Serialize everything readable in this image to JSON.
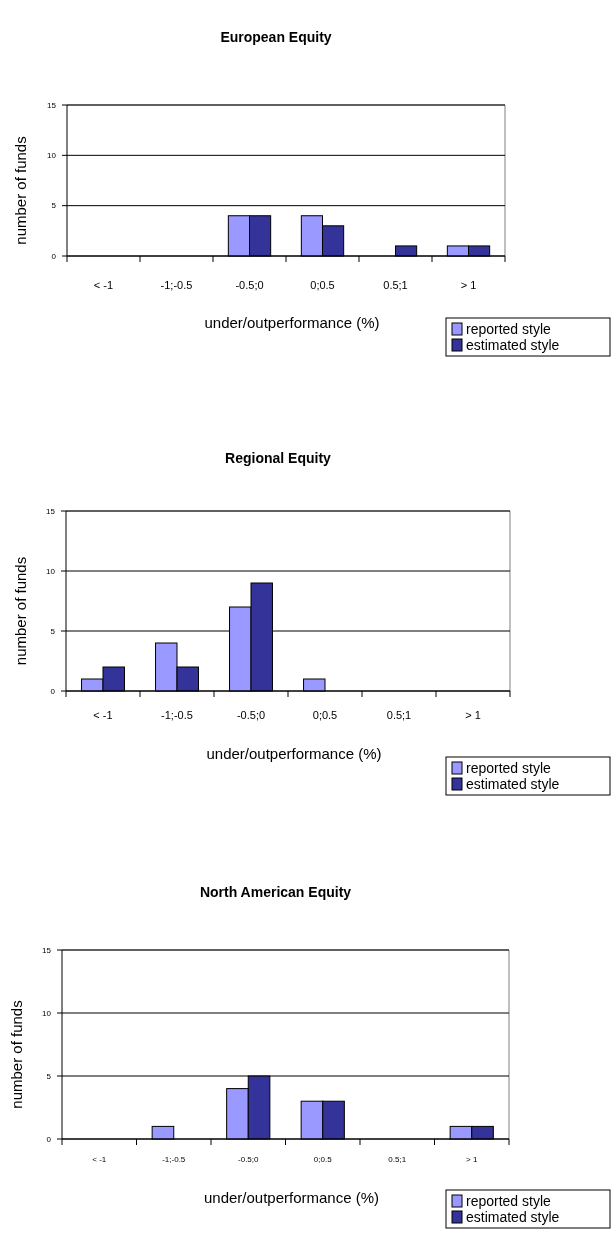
{
  "chart_data": [
    {
      "type": "bar",
      "title": "European Equity",
      "xlabel": "under/outperformance (%)",
      "ylabel": "number of funds",
      "categories": [
        "< -1",
        "-1;-0.5",
        "-0.5;0",
        "0;0.5",
        "0.5;1",
        "> 1"
      ],
      "series": [
        {
          "name": "reported style",
          "color": "#9999ff",
          "values": [
            0,
            0,
            4,
            4,
            0,
            1
          ]
        },
        {
          "name": "estimated style",
          "color": "#333399",
          "values": [
            0,
            0,
            4,
            3,
            1,
            1
          ]
        }
      ],
      "ylim": [
        0,
        15
      ],
      "yticks": [
        0,
        5,
        10,
        15
      ],
      "grid": "y",
      "legend": "bottom right"
    },
    {
      "type": "bar",
      "title": "Regional Equity",
      "xlabel": "under/outperformance (%)",
      "ylabel": "number of funds",
      "categories": [
        "< -1",
        "-1;-0.5",
        "-0.5;0",
        "0;0.5",
        "0.5;1",
        "> 1"
      ],
      "series": [
        {
          "name": "reported style",
          "color": "#9999ff",
          "values": [
            1,
            4,
            7,
            1,
            0,
            0
          ]
        },
        {
          "name": "estimated style",
          "color": "#333399",
          "values": [
            2,
            2,
            9,
            0,
            0,
            0
          ]
        }
      ],
      "ylim": [
        0,
        15
      ],
      "yticks": [
        0,
        5,
        10,
        15
      ],
      "grid": "y",
      "legend": "bottom right"
    },
    {
      "type": "bar",
      "title": "North American Equity",
      "xlabel": "under/outperformance (%)",
      "ylabel": "number of funds",
      "categories": [
        "< -1",
        "-1;-0.5",
        "-0.5;0",
        "0;0.5",
        "0.5;1",
        "> 1"
      ],
      "series": [
        {
          "name": "reported style",
          "color": "#9999ff",
          "values": [
            0,
            1,
            4,
            3,
            0,
            1
          ]
        },
        {
          "name": "estimated style",
          "color": "#333399",
          "values": [
            0,
            0,
            5,
            3,
            0,
            1
          ]
        }
      ],
      "ylim": [
        0,
        15
      ],
      "yticks": [
        0,
        5,
        10,
        15
      ],
      "grid": "y",
      "legend": "bottom right"
    }
  ]
}
